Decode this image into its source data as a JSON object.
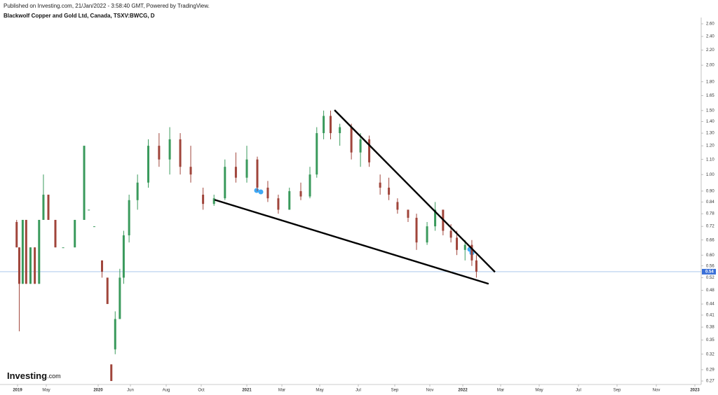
{
  "chart_data": {
    "type": "candlestick",
    "source": "Published on Investing.com, 21/Jan/2022 - 3:58:40 GMT, Powered by TradingView.",
    "title": "Blackwolf Copper and Gold Ltd, Canada, TSXV:BWCG, D",
    "logo": {
      "name": "Investing",
      "suffix": ".com"
    },
    "log_scale": true,
    "up_color": "#3a9a5c",
    "down_color": "#a0453b",
    "x": [
      2018.99,
      2019.02,
      2019.06,
      2019.1,
      2019.15,
      2019.2,
      2019.25,
      2019.3,
      2019.36,
      2019.45,
      2019.55,
      2019.7,
      2019.82,
      2019.88,
      2019.95,
      2020.05,
      2020.12,
      2020.17,
      2020.22,
      2020.28,
      2020.33,
      2020.4,
      2020.45,
      2020.5,
      2020.55,
      2020.6,
      2020.65,
      2020.7,
      2020.76,
      2020.82,
      2020.88,
      2020.94,
      2021.0,
      2021.05,
      2021.1,
      2021.15,
      2021.2,
      2021.25,
      2021.29,
      2021.32,
      2021.35,
      2021.38,
      2021.42,
      2021.47,
      2021.51,
      2021.55,
      2021.6,
      2021.64,
      2021.68,
      2021.73,
      2021.77,
      2021.82,
      2021.86,
      2021.9,
      2021.94,
      2021.97,
      2022.01,
      2022.04,
      2022.06
    ],
    "open": [
      0.74,
      0.63,
      0.5,
      0.75,
      0.5,
      0.63,
      0.5,
      0.75,
      0.88,
      0.75,
      0.63,
      0.63,
      0.75,
      0.8,
      0.72,
      0.58,
      0.52,
      0.3,
      0.33,
      0.4,
      0.52,
      0.68,
      0.85,
      0.95,
      1.2,
      1.1,
      1.25,
      1.05,
      0.88,
      0.83,
      0.86,
      1.05,
      0.98,
      1.1,
      0.92,
      0.86,
      0.8,
      0.9,
      0.87,
      1.0,
      1.3,
      1.45,
      1.3,
      1.35,
      1.15,
      1.25,
      0.95,
      0.92,
      0.84,
      0.8,
      0.76,
      0.65,
      0.72,
      0.8,
      0.7,
      0.67,
      0.62,
      0.64,
      0.58
    ],
    "high": [
      0.75,
      0.63,
      0.75,
      0.75,
      0.63,
      0.63,
      0.75,
      1.0,
      0.88,
      0.75,
      0.63,
      0.75,
      1.2,
      0.8,
      0.72,
      0.58,
      0.52,
      0.3,
      0.42,
      0.55,
      0.7,
      0.88,
      1.0,
      1.25,
      1.3,
      1.35,
      1.3,
      1.2,
      0.92,
      0.88,
      1.1,
      1.15,
      1.2,
      1.12,
      0.96,
      0.88,
      0.92,
      0.95,
      1.05,
      1.35,
      1.5,
      1.5,
      1.38,
      1.38,
      1.3,
      1.28,
      1.0,
      0.98,
      0.86,
      0.8,
      0.78,
      0.74,
      0.84,
      0.8,
      0.73,
      0.7,
      0.66,
      0.66,
      0.6
    ],
    "low": [
      0.63,
      0.37,
      0.5,
      0.5,
      0.5,
      0.5,
      0.5,
      0.75,
      0.75,
      0.63,
      0.63,
      0.63,
      0.75,
      0.8,
      0.72,
      0.52,
      0.44,
      0.27,
      0.32,
      0.4,
      0.5,
      0.65,
      0.8,
      0.92,
      1.05,
      1.0,
      1.0,
      0.95,
      0.8,
      0.82,
      0.85,
      0.95,
      0.95,
      0.9,
      0.84,
      0.78,
      0.8,
      0.85,
      0.86,
      0.98,
      1.25,
      1.25,
      1.2,
      1.1,
      1.05,
      1.05,
      0.88,
      0.85,
      0.78,
      0.74,
      0.62,
      0.64,
      0.7,
      0.68,
      0.65,
      0.6,
      0.58,
      0.56,
      0.52
    ],
    "close": [
      0.63,
      0.5,
      0.75,
      0.5,
      0.63,
      0.5,
      0.75,
      0.88,
      0.75,
      0.63,
      0.63,
      0.75,
      1.2,
      0.8,
      0.72,
      0.54,
      0.44,
      0.27,
      0.4,
      0.52,
      0.68,
      0.85,
      0.95,
      1.2,
      1.1,
      1.25,
      1.05,
      1.0,
      0.83,
      0.86,
      1.05,
      0.98,
      1.1,
      0.92,
      0.86,
      0.8,
      0.9,
      0.87,
      1.0,
      1.3,
      1.45,
      1.3,
      1.35,
      1.15,
      1.25,
      1.08,
      0.92,
      0.88,
      0.8,
      0.76,
      0.65,
      0.72,
      0.8,
      0.7,
      0.67,
      0.62,
      0.64,
      0.58,
      0.54
    ],
    "xlim": [
      2018.8,
      2023.03
    ],
    "xticks": [
      {
        "value": 2019,
        "label": "2019"
      },
      {
        "value": 2019.333,
        "label": "May"
      },
      {
        "value": 2020,
        "label": "2020"
      },
      {
        "value": 2020.417,
        "label": "Jun"
      },
      {
        "value": 2020.583,
        "label": "Aug"
      },
      {
        "value": 2020.75,
        "label": "Oct"
      },
      {
        "value": 2021,
        "label": "2021"
      },
      {
        "value": 2021.167,
        "label": "Mar"
      },
      {
        "value": 2021.333,
        "label": "May"
      },
      {
        "value": 2021.5,
        "label": "Jul"
      },
      {
        "value": 2021.667,
        "label": "Sep"
      },
      {
        "value": 2021.833,
        "label": "Nov"
      },
      {
        "value": 2022,
        "label": "2022"
      },
      {
        "value": 2022.167,
        "label": "Mar"
      },
      {
        "value": 2022.333,
        "label": "May"
      },
      {
        "value": 2022.5,
        "label": "Jul"
      },
      {
        "value": 2022.667,
        "label": "Sep"
      },
      {
        "value": 2022.833,
        "label": "Nov"
      },
      {
        "value": 2023,
        "label": "2023"
      }
    ],
    "ylim": [
      0.262,
      2.7
    ],
    "yticks": [
      {
        "value": 2.6,
        "label": "2.60"
      },
      {
        "value": 2.4,
        "label": "2.40"
      },
      {
        "value": 2.2,
        "label": "2.20"
      },
      {
        "value": 2,
        "label": "2.00"
      },
      {
        "value": 1.8,
        "label": "1.80"
      },
      1.65,
      {
        "value": 1.5,
        "label": "1.50"
      },
      {
        "value": 1.4,
        "label": "1.40"
      },
      {
        "value": 1.3,
        "label": "1.30"
      },
      {
        "value": 1.2,
        "label": "1.20"
      },
      {
        "value": 1.1,
        "label": "1.10"
      },
      {
        "value": 1,
        "label": "1.00"
      },
      {
        "value": 0.9,
        "label": "0.90"
      },
      0.84,
      0.78,
      0.72,
      0.66,
      {
        "value": 0.6,
        "label": "0.60"
      },
      0.56,
      0.52,
      0.48,
      0.44,
      0.41,
      0.38,
      0.35,
      0.32,
      0.29,
      0.27
    ],
    "last_price": 0.54,
    "last_price_color": "#3a6fd8",
    "trendline_color": "#000000",
    "trendlines": [
      {
        "x": [
          2021.397,
          2022.142
        ],
        "y": [
          1.505,
          0.539
        ]
      },
      {
        "x": [
          2020.823,
          2022.114
        ],
        "y": [
          0.852,
          0.5
        ]
      }
    ]
  }
}
